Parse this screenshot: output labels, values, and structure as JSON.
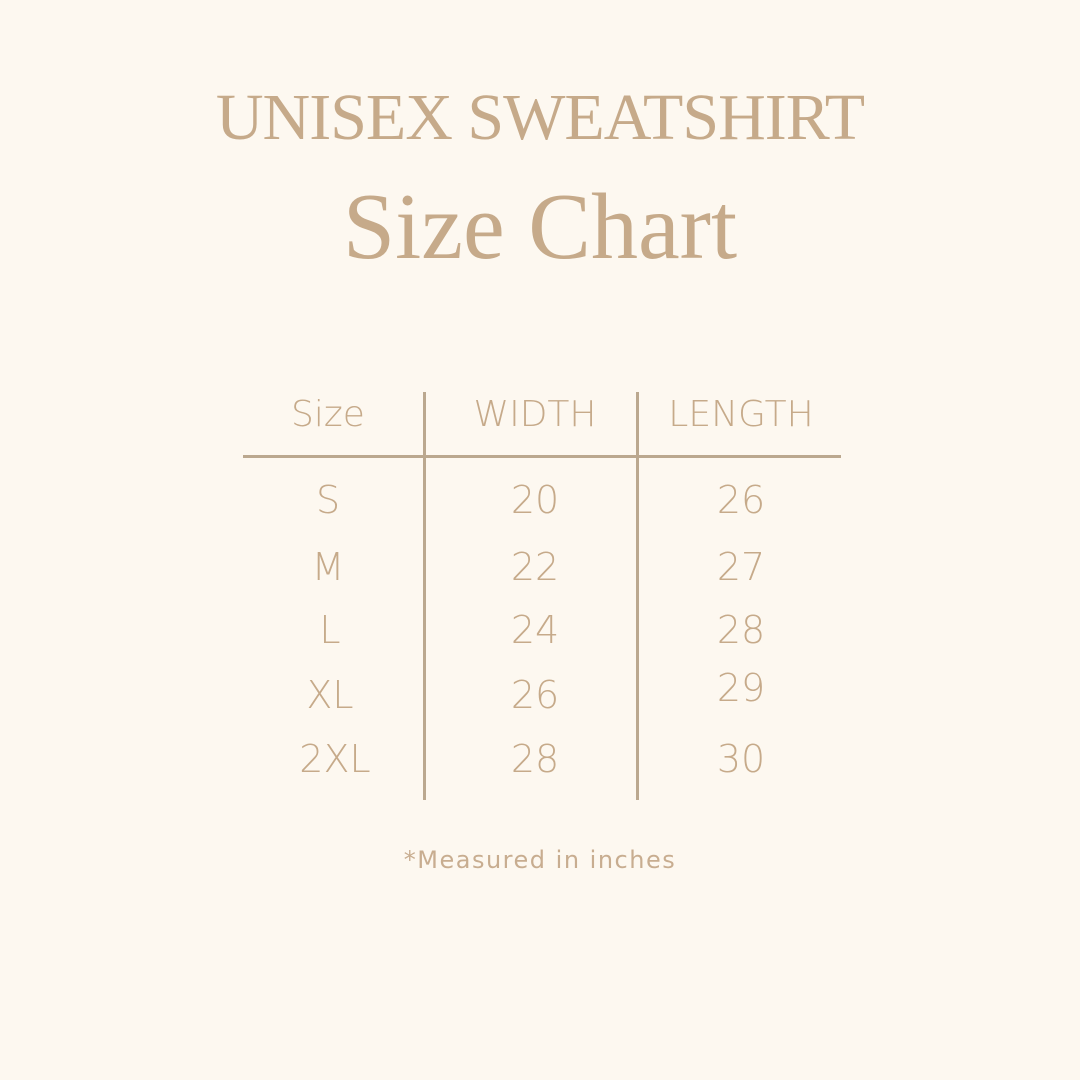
{
  "title": "UNISEX SWEATSHIRT",
  "subtitle": "Size Chart",
  "colors": {
    "background": "#fdf8f0",
    "text": "#c6aa8a",
    "lines": "#bba88f"
  },
  "table": {
    "headers": [
      "Size",
      "WIDTH",
      "LENGTH"
    ],
    "rows": [
      [
        "S",
        "20",
        "26"
      ],
      [
        "M",
        "22",
        "27"
      ],
      [
        "L",
        "24",
        "28"
      ],
      [
        "XL",
        "26",
        "29"
      ],
      [
        "2XL",
        "28",
        "30"
      ]
    ]
  },
  "footnote": "*Measured in inches"
}
